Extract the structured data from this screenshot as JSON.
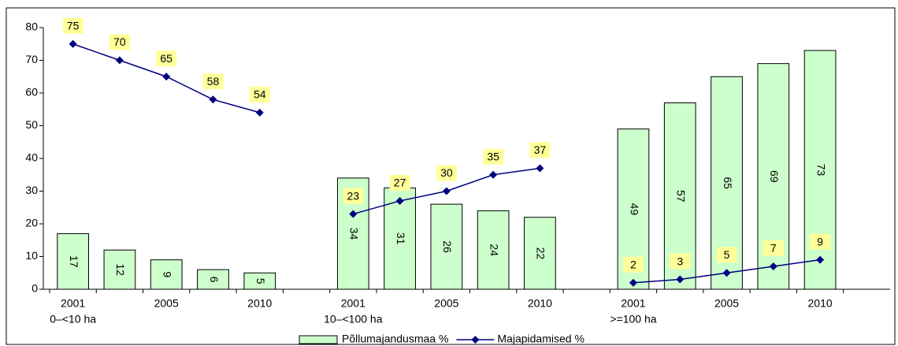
{
  "chart_data": {
    "type": "bar-line",
    "categories": [
      "2001",
      null,
      "2005",
      null,
      "2010",
      null,
      "2001",
      null,
      "2005",
      null,
      "2010",
      null,
      "2001",
      null,
      "2005",
      null,
      "2010",
      null
    ],
    "groups": [
      {
        "label": "0–<10 ha",
        "start": 0
      },
      {
        "label": "10–<100 ha",
        "start": 6
      },
      {
        "label": ">=100 ha",
        "start": 12
      }
    ],
    "series": [
      {
        "name": "Põllumajandusmaa %",
        "type": "bar",
        "color": "#ccffcc",
        "values": [
          17,
          12,
          9,
          6,
          5,
          null,
          34,
          31,
          26,
          24,
          22,
          null,
          49,
          57,
          65,
          69,
          73,
          null
        ]
      },
      {
        "name": "Majapidamised %",
        "type": "line",
        "color": "#000080",
        "label_color": "#ffff99",
        "values": [
          75,
          70,
          65,
          58,
          54,
          null,
          23,
          27,
          30,
          35,
          37,
          null,
          2,
          3,
          5,
          7,
          9,
          null
        ]
      }
    ],
    "ylim": [
      0,
      80
    ],
    "yticks": [
      0,
      10,
      20,
      30,
      40,
      50,
      60,
      70,
      80
    ],
    "grid": false,
    "legend": "bottom"
  }
}
